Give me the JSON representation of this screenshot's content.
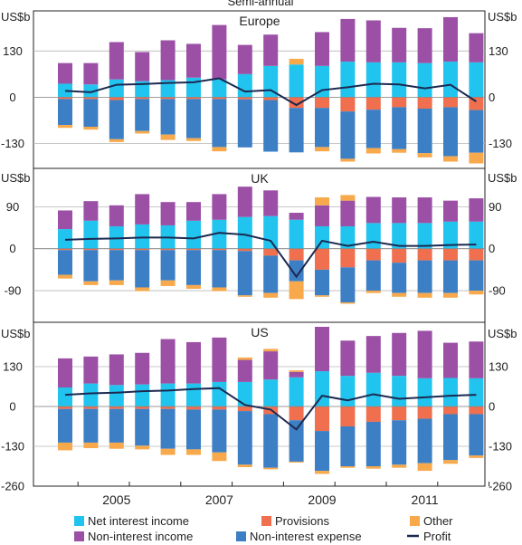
{
  "header": {
    "title": "Semi-annual"
  },
  "colors": {
    "net_interest_income": "#21c4ee",
    "non_interest_income": "#9b50a6",
    "provisions": "#ef6f4e",
    "non_interest_expense": "#3d7fc4",
    "other": "#f7a94b",
    "profit": "#1c2951"
  },
  "legend": {
    "items": [
      {
        "key": "net_interest_income",
        "label": "Net interest income",
        "shape": "square"
      },
      {
        "key": "provisions",
        "label": "Provisions",
        "shape": "square"
      },
      {
        "key": "other",
        "label": "Other",
        "shape": "square"
      },
      {
        "key": "non_interest_income",
        "label": "Non-interest income",
        "shape": "square"
      },
      {
        "key": "non_interest_expense",
        "label": "Non-interest expense",
        "shape": "square"
      },
      {
        "key": "profit",
        "label": "Profit",
        "shape": "line"
      }
    ]
  },
  "x_axis": {
    "tick_labels": [
      "2005",
      "2007",
      "2009",
      "2011"
    ],
    "tick_label_periods": [
      2,
      6,
      10,
      14
    ]
  },
  "chart_data": [
    {
      "type": "bar",
      "title": "Europe",
      "unit_label": "US$b",
      "yticks": [
        130,
        0,
        -130
      ],
      "ylim": [
        -200,
        230
      ],
      "periods": [
        "2003 H2",
        "2004 H1",
        "2004 H2",
        "2005 H1",
        "2005 H2",
        "2006 H1",
        "2006 H2",
        "2007 H1",
        "2007 H2",
        "2008 H1",
        "2008 H2",
        "2009 H1",
        "2009 H2",
        "2010 H1",
        "2010 H2",
        "2011 H1",
        "2011 H2"
      ],
      "series": [
        {
          "key": "net_interest_income",
          "name": "Net interest income",
          "values": [
            38,
            36,
            50,
            45,
            48,
            55,
            50,
            65,
            88,
            92,
            88,
            100,
            98,
            98,
            96,
            100,
            98
          ]
        },
        {
          "key": "non_interest_income",
          "name": "Non-interest income",
          "values": [
            58,
            60,
            105,
            82,
            112,
            95,
            153,
            82,
            88,
            0,
            95,
            120,
            118,
            97,
            98,
            125,
            82
          ]
        },
        {
          "key": "other",
          "name": "Other",
          "values": [
            0,
            0,
            0,
            0,
            0,
            0,
            0,
            0,
            0,
            16,
            0,
            0,
            0,
            0,
            0,
            0,
            0
          ]
        },
        {
          "key": "provisions",
          "name": "Provisions",
          "values": [
            -5,
            -5,
            -8,
            -5,
            -5,
            -5,
            -5,
            -6,
            -8,
            -30,
            -30,
            -40,
            -35,
            -28,
            -32,
            -28,
            -36
          ]
        },
        {
          "key": "non_interest_expense",
          "name": "Non-interest expense",
          "values": [
            -73,
            -78,
            -110,
            -90,
            -100,
            -110,
            -135,
            -135,
            -145,
            -125,
            -110,
            -133,
            -108,
            -118,
            -125,
            -138,
            -120
          ]
        },
        {
          "key": "other",
          "name": "Other",
          "values": [
            -8,
            -8,
            -8,
            -7,
            -15,
            -8,
            -12,
            0,
            0,
            0,
            -12,
            -8,
            -15,
            -10,
            -12,
            -15,
            -30
          ]
        }
      ],
      "profit": [
        18,
        14,
        35,
        37,
        40,
        42,
        53,
        16,
        20,
        -22,
        20,
        28,
        38,
        36,
        25,
        35,
        -12
      ]
    },
    {
      "type": "bar",
      "title": "UK",
      "unit_label": "US$b",
      "yticks": [
        90,
        0,
        -90
      ],
      "ylim": [
        -150,
        145
      ],
      "periods": [
        "2003 H2",
        "2004 H1",
        "2004 H2",
        "2005 H1",
        "2005 H2",
        "2006 H1",
        "2006 H2",
        "2007 H1",
        "2007 H2",
        "2008 H1",
        "2008 H2",
        "2009 H1",
        "2009 H2",
        "2010 H1",
        "2010 H2",
        "2011 H1",
        "2011 H2"
      ],
      "series": [
        {
          "key": "net_interest_income",
          "name": "Net interest income",
          "values": [
            42,
            60,
            48,
            52,
            50,
            60,
            62,
            68,
            70,
            62,
            48,
            48,
            55,
            55,
            55,
            58,
            58
          ]
        },
        {
          "key": "non_interest_income",
          "name": "Non-interest income",
          "values": [
            40,
            42,
            45,
            65,
            50,
            40,
            55,
            65,
            55,
            15,
            45,
            55,
            56,
            55,
            55,
            45,
            50
          ]
        },
        {
          "key": "other",
          "name": "Other",
          "values": [
            0,
            0,
            0,
            0,
            0,
            0,
            0,
            0,
            0,
            0,
            17,
            12,
            0,
            0,
            0,
            0,
            0
          ]
        },
        {
          "key": "provisions",
          "name": "Provisions",
          "values": [
            -3,
            -3,
            -3,
            -3,
            -3,
            -3,
            -3,
            -5,
            -15,
            -25,
            -45,
            -40,
            -25,
            -30,
            -25,
            -25,
            -25
          ]
        },
        {
          "key": "non_interest_expense",
          "name": "Non-interest expense",
          "values": [
            -53,
            -67,
            -65,
            -80,
            -65,
            -75,
            -80,
            -95,
            -80,
            -45,
            -55,
            -75,
            -65,
            -65,
            -70,
            -70,
            -65
          ]
        },
        {
          "key": "other",
          "name": "Other",
          "values": [
            -8,
            -8,
            -10,
            -8,
            -12,
            -8,
            -8,
            -3,
            -10,
            -38,
            -3,
            -3,
            -5,
            -8,
            -10,
            -10,
            -8
          ]
        }
      ],
      "profit": [
        19,
        21,
        22,
        24,
        24,
        22,
        34,
        30,
        17,
        -60,
        17,
        6,
        15,
        6,
        6,
        8,
        9
      ]
    },
    {
      "type": "bar",
      "title": "US",
      "unit_label": "US$b",
      "yticks": [
        130,
        0,
        -130,
        -260
      ],
      "ylim": [
        -260,
        260
      ],
      "periods": [
        "2003 H2",
        "2004 H1",
        "2004 H2",
        "2005 H1",
        "2005 H2",
        "2006 H1",
        "2006 H2",
        "2007 H1",
        "2007 H2",
        "2008 H1",
        "2008 H2",
        "2009 H1",
        "2009 H2",
        "2010 H1",
        "2010 H2",
        "2011 H1",
        "2011 H2"
      ],
      "series": [
        {
          "key": "net_interest_income",
          "name": "Net interest income",
          "values": [
            62,
            75,
            70,
            72,
            75,
            75,
            80,
            80,
            88,
            95,
            115,
            100,
            110,
            100,
            92,
            93,
            92
          ]
        },
        {
          "key": "non_interest_income",
          "name": "Non-interest income",
          "values": [
            95,
            88,
            100,
            103,
            145,
            135,
            145,
            72,
            92,
            18,
            145,
            115,
            120,
            140,
            155,
            115,
            120
          ]
        },
        {
          "key": "other",
          "name": "Other",
          "values": [
            0,
            0,
            0,
            0,
            0,
            0,
            0,
            8,
            8,
            5,
            0,
            0,
            0,
            0,
            0,
            0,
            0
          ]
        },
        {
          "key": "provisions",
          "name": "Provisions",
          "values": [
            -8,
            -8,
            -8,
            -8,
            -8,
            -10,
            -10,
            -15,
            -25,
            -45,
            -80,
            -65,
            -50,
            -45,
            -40,
            -25,
            -25
          ]
        },
        {
          "key": "non_interest_expense",
          "name": "Non-interest expense",
          "values": [
            -110,
            -110,
            -110,
            -120,
            -130,
            -130,
            -140,
            -175,
            -175,
            -135,
            -130,
            -130,
            -145,
            -145,
            -145,
            -150,
            -135
          ]
        },
        {
          "key": "other",
          "name": "Other",
          "values": [
            -25,
            -18,
            -20,
            -12,
            -20,
            -18,
            -28,
            -8,
            -5,
            -3,
            -10,
            -5,
            -8,
            -10,
            -25,
            -12,
            -8
          ]
        }
      ],
      "profit": [
        38,
        43,
        45,
        50,
        52,
        57,
        60,
        5,
        -10,
        -75,
        35,
        20,
        40,
        25,
        30,
        35,
        38
      ]
    }
  ]
}
